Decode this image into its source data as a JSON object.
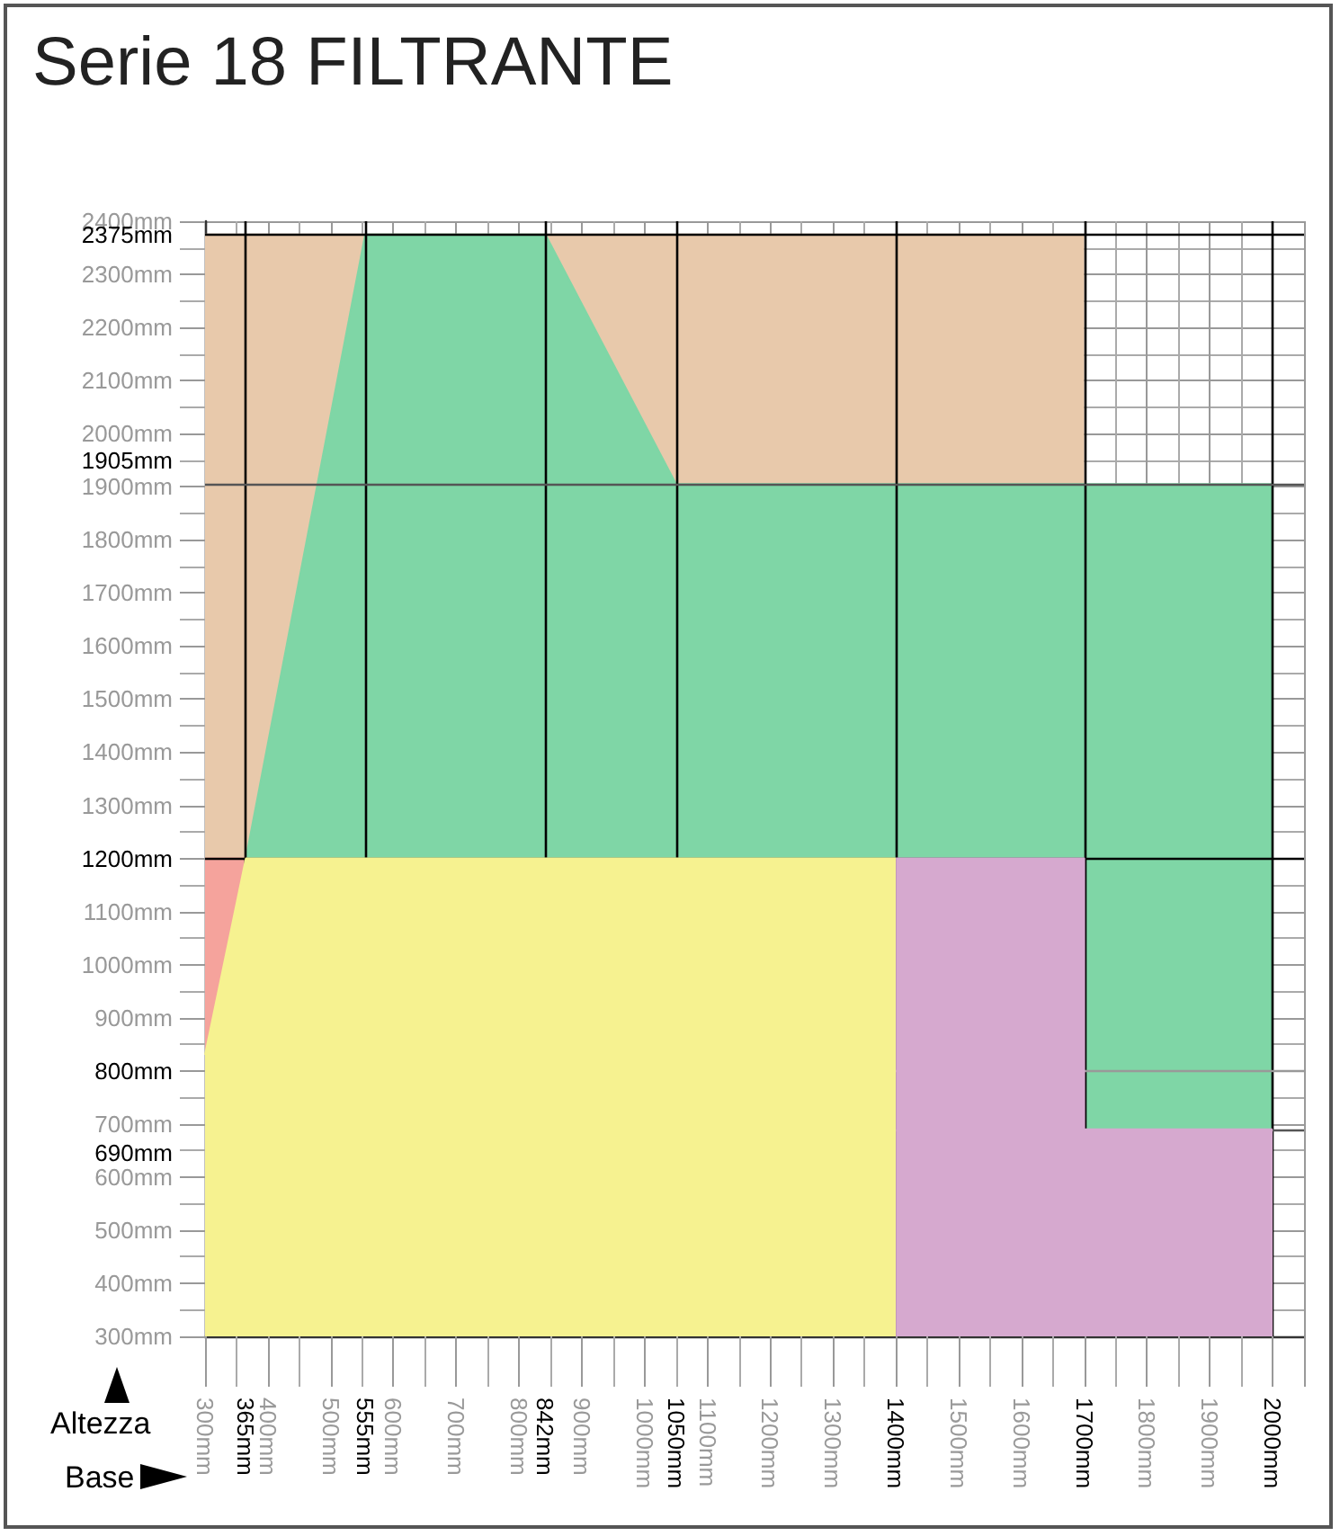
{
  "chart_data": {
    "type": "area",
    "title": "Serie 18 FILTRANTE",
    "xlabel": "Base",
    "ylabel": "Altezza",
    "xlim": [
      300,
      2050
    ],
    "ylim": [
      300,
      2400
    ],
    "xticks": [
      {
        "value": 300,
        "label": "300mm"
      },
      {
        "value": 400,
        "label": "400mm"
      },
      {
        "value": 500,
        "label": "500mm"
      },
      {
        "value": 600,
        "label": "600mm"
      },
      {
        "value": 700,
        "label": "700mm"
      },
      {
        "value": 800,
        "label": "800mm"
      },
      {
        "value": 900,
        "label": "900mm"
      },
      {
        "value": 1000,
        "label": "1000mm"
      },
      {
        "value": 1100,
        "label": "1100mm"
      },
      {
        "value": 1200,
        "label": "1200mm"
      },
      {
        "value": 1300,
        "label": "1300mm"
      },
      {
        "value": 1500,
        "label": "1500mm"
      },
      {
        "value": 1600,
        "label": "1600mm"
      },
      {
        "value": 1800,
        "label": "1800mm"
      },
      {
        "value": 1900,
        "label": "1900mm"
      }
    ],
    "yticks": [
      {
        "value": 300,
        "label": "300mm"
      },
      {
        "value": 400,
        "label": "400mm"
      },
      {
        "value": 500,
        "label": "500mm"
      },
      {
        "value": 600,
        "label": "600mm"
      },
      {
        "value": 700,
        "label": "700mm"
      },
      {
        "value": 900,
        "label": "900mm"
      },
      {
        "value": 1000,
        "label": "1000mm"
      },
      {
        "value": 1100,
        "label": "1100mm"
      },
      {
        "value": 1300,
        "label": "1300mm"
      },
      {
        "value": 1400,
        "label": "1400mm"
      },
      {
        "value": 1500,
        "label": "1500mm"
      },
      {
        "value": 1600,
        "label": "1600mm"
      },
      {
        "value": 1700,
        "label": "1700mm"
      },
      {
        "value": 1800,
        "label": "1800mm"
      },
      {
        "value": 1900,
        "label": "1900mm"
      },
      {
        "value": 2000,
        "label": "2000mm"
      },
      {
        "value": 2100,
        "label": "2100mm"
      },
      {
        "value": 2200,
        "label": "2200mm"
      },
      {
        "value": 2300,
        "label": "2300mm"
      },
      {
        "value": 2400,
        "label": "2400mm"
      }
    ],
    "grid": true,
    "series": [
      {
        "color": "#e8c9ab",
        "x": [
          300,
          1700
        ],
        "values": [
          2375,
          2375
        ]
      },
      {
        "color": "#7fd6a6",
        "x": [
          365,
          555,
          842,
          1050,
          2000
        ],
        "values": [
          1200,
          2375,
          2375,
          1905,
          1905
        ]
      },
      {
        "color": "#f5a39c",
        "x": [
          300,
          365
        ],
        "values": [
          1200,
          1200
        ]
      },
      {
        "color": "#f6f290",
        "x": [
          300,
          365,
          1400
        ],
        "values": [
          830,
          1200,
          1200
        ]
      },
      {
        "color": "#d6a9cf",
        "x": [
          1400,
          1700,
          1700,
          2000
        ],
        "values": [
          1200,
          1200,
          690,
          690
        ]
      }
    ],
    "ref_lines": [
      {
        "axis": "x",
        "value": 365,
        "label": "365mm",
        "color": "#000000"
      },
      {
        "axis": "x",
        "value": 555,
        "label": "555mm",
        "color": "#000000"
      },
      {
        "axis": "x",
        "value": 842,
        "label": "842mm",
        "color": "#000000"
      },
      {
        "axis": "x",
        "value": 1050,
        "label": "1050mm",
        "color": "#000000"
      },
      {
        "axis": "x",
        "value": 1400,
        "label": "1400mm",
        "color": "#000000"
      },
      {
        "axis": "x",
        "value": 1700,
        "label": "1700mm",
        "color": "#000000"
      },
      {
        "axis": "x",
        "value": 2000,
        "label": "2000mm",
        "color": "#000000"
      },
      {
        "axis": "y",
        "value": 690,
        "label": "690mm",
        "color": "#555555"
      },
      {
        "axis": "y",
        "value": 800,
        "label": "800mm",
        "color": "#999999"
      },
      {
        "axis": "y",
        "value": 1200,
        "label": "1200mm",
        "color": "#000000"
      },
      {
        "axis": "y",
        "value": 1905,
        "label": "1905mm",
        "color": "#555555"
      },
      {
        "axis": "y",
        "value": 2375,
        "label": "2375mm",
        "color": "#000000"
      }
    ]
  }
}
